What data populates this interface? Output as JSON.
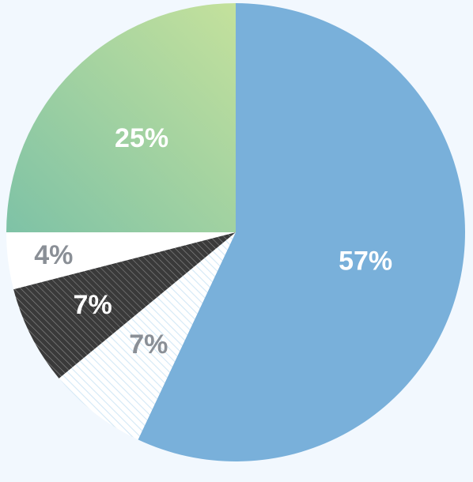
{
  "chart_data": {
    "type": "pie",
    "title": "",
    "start_angle_deg": 0,
    "direction": "clockwise",
    "slices": [
      {
        "label": "57%",
        "value": 57,
        "fill": "#79b0da",
        "label_color": "#ffffff",
        "pattern": "solid"
      },
      {
        "label": "7%",
        "value": 7,
        "fill": "#ffffff",
        "label_color": "#8a8f96",
        "pattern": "hatch-light"
      },
      {
        "label": "7%",
        "value": 7,
        "fill": "#3a3a3a",
        "label_color": "#ffffff",
        "pattern": "hatch-dark"
      },
      {
        "label": "4%",
        "value": 4,
        "fill": "#ffffff",
        "label_color": "#8a8f96",
        "pattern": "solid"
      },
      {
        "label": "25%",
        "value": 25,
        "fill": "#8ac9a4",
        "label_color": "#ffffff",
        "pattern": "gradient"
      }
    ],
    "colors": {
      "background": "#f2f8fe",
      "gradient_start": "#7ec2a6",
      "gradient_end": "#c4e19c",
      "hatch_light_line": "#d3e8f6",
      "hatch_dark_line": "#8a8a8a"
    }
  }
}
